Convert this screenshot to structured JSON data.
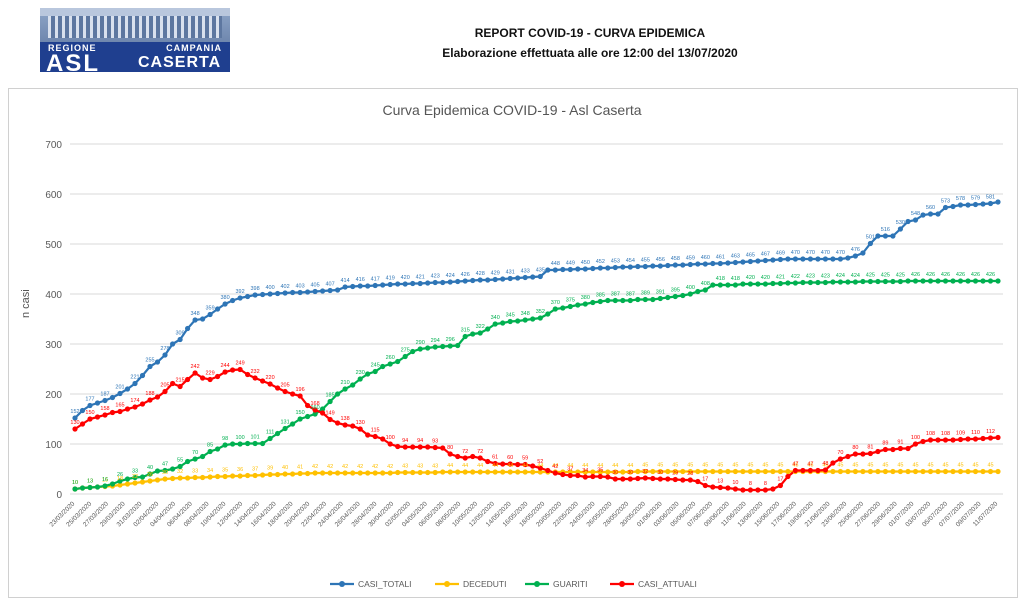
{
  "header": {
    "logo_region": "REGIONE",
    "logo_region_right": "CAMPANIA",
    "logo_asl": "ASL",
    "logo_city": "CASERTA",
    "report_title": "REPORT COVID-19 - CURVA EPIDEMICA",
    "report_subtitle": "Elaborazione effettuata alle ore 12:00 del 13/07/2020"
  },
  "chart_data": {
    "type": "line",
    "title": "Curva Epidemica COVID-19 - Asl Caserta",
    "xlabel": "",
    "ylabel": "n casi",
    "ylim": [
      0,
      700
    ],
    "yticks": [
      0,
      100,
      200,
      300,
      400,
      500,
      600,
      700
    ],
    "grid": "horizontal",
    "legend_position": "bottom",
    "x_tick_labels": [
      "23/03/2020",
      "25/03/2020",
      "27/03/2020",
      "29/03/2020",
      "31/03/2020",
      "02/04/2020",
      "04/04/2020",
      "06/04/2020",
      "08/04/2020",
      "10/04/2020",
      "12/04/2020",
      "14/04/2020",
      "16/04/2020",
      "18/04/2020",
      "20/04/2020",
      "22/04/2020",
      "24/04/2020",
      "26/04/2020",
      "28/04/2020",
      "30/04/2020",
      "02/05/2020",
      "04/05/2020",
      "06/05/2020",
      "08/05/2020",
      "10/05/2020",
      "12/05/2020",
      "14/05/2020",
      "16/05/2020",
      "18/05/2020",
      "20/05/2020",
      "22/05/2020",
      "24/05/2020",
      "26/05/2020",
      "28/05/2020",
      "30/05/2020",
      "01/06/2020",
      "03/06/2020",
      "05/06/2020",
      "07/06/2020",
      "09/06/2020",
      "11/06/2020",
      "13/06/2020",
      "15/06/2020",
      "17/06/2020",
      "19/06/2020",
      "21/06/2020",
      "23/06/2020",
      "25/06/2020",
      "27/06/2020",
      "29/06/2020",
      "01/07/2020",
      "03/07/2020",
      "05/07/2020",
      "07/07/2020",
      "09/07/2020",
      "11/07/2020"
    ],
    "series": [
      {
        "name": "CASI_TOTALI",
        "color": "#2e75b6",
        "values": [
          152,
          167,
          177,
          182,
          187,
          193,
          201,
          210,
          221,
          237,
          255,
          264,
          278,
          300,
          309,
          331,
          348,
          350,
          359,
          370,
          380,
          387,
          392,
          395,
          398,
          399,
          400,
          401,
          402,
          403,
          403,
          404,
          405,
          406,
          407,
          408,
          414,
          415,
          416,
          416,
          417,
          418,
          419,
          420,
          420,
          421,
          421,
          422,
          423,
          423,
          424,
          425,
          426,
          427,
          428,
          428,
          429,
          430,
          431,
          432,
          433,
          434,
          435,
          448,
          448,
          449,
          449,
          450,
          450,
          451,
          452,
          452,
          453,
          454,
          454,
          455,
          455,
          456,
          456,
          457,
          458,
          458,
          459,
          460,
          460,
          461,
          461,
          462,
          463,
          464,
          465,
          466,
          467,
          468,
          469,
          470,
          470,
          470,
          470,
          470,
          470,
          470,
          470,
          472,
          476,
          482,
          501,
          516,
          516,
          516,
          530,
          545,
          548,
          558,
          560,
          560,
          573,
          575,
          578,
          578,
          579,
          580,
          581,
          584
        ]
      },
      {
        "name": "DECEDUTI",
        "color": "#ffc000",
        "values": [
          10,
          12,
          13,
          14,
          15,
          16,
          18,
          20,
          22,
          24,
          26,
          28,
          30,
          31,
          32,
          32,
          33,
          33,
          34,
          35,
          35,
          36,
          36,
          37,
          37,
          38,
          39,
          39,
          40,
          40,
          41,
          41,
          42,
          42,
          42,
          42,
          42,
          42,
          42,
          42,
          42,
          42,
          42,
          43,
          43,
          43,
          43,
          43,
          43,
          44,
          44,
          44,
          44,
          44,
          44,
          44,
          44,
          44,
          44,
          44,
          44,
          44,
          44,
          44,
          44,
          44,
          44,
          44,
          44,
          44,
          44,
          44,
          44,
          44,
          44,
          45,
          45,
          45,
          45,
          45,
          45,
          45,
          45,
          45,
          45,
          45,
          45,
          45,
          45,
          45,
          45,
          45,
          45,
          45,
          45,
          45,
          45,
          45,
          45,
          45,
          45,
          45,
          45,
          45,
          45,
          45,
          45,
          45,
          45,
          45,
          45,
          45,
          45,
          45,
          45,
          45,
          45,
          45,
          45,
          45,
          45,
          45,
          45,
          45
        ]
      },
      {
        "name": "GUARITI",
        "color": "#00b050",
        "values": [
          10,
          12,
          13,
          14,
          16,
          20,
          26,
          30,
          33,
          34,
          40,
          46,
          47,
          50,
          55,
          65,
          70,
          75,
          85,
          90,
          98,
          100,
          100,
          101,
          101,
          101,
          111,
          121,
          131,
          140,
          150,
          155,
          160,
          170,
          185,
          200,
          210,
          218,
          230,
          240,
          245,
          255,
          260,
          265,
          275,
          285,
          290,
          292,
          294,
          295,
          296,
          297,
          315,
          320,
          322,
          330,
          340,
          342,
          345,
          346,
          348,
          350,
          352,
          360,
          370,
          372,
          375,
          378,
          380,
          383,
          385,
          387,
          387,
          387,
          387,
          389,
          389,
          389,
          391,
          393,
          395,
          397,
          400,
          405,
          408,
          418,
          418,
          418,
          418,
          420,
          420,
          420,
          420,
          421,
          421,
          422,
          422,
          423,
          423,
          423,
          423,
          424,
          424,
          424,
          424,
          425,
          425,
          425,
          425,
          425,
          425,
          426,
          426,
          426,
          426,
          426,
          426,
          426,
          426,
          426,
          426,
          426,
          426,
          426
        ]
      },
      {
        "name": "CASI_ATTUALI",
        "color": "#ff0000",
        "values": [
          130,
          140,
          150,
          154,
          158,
          163,
          165,
          170,
          174,
          180,
          188,
          194,
          205,
          221,
          215,
          229,
          242,
          232,
          229,
          235,
          244,
          248,
          249,
          239,
          232,
          226,
          220,
          212,
          205,
          200,
          196,
          177,
          168,
          162,
          149,
          142,
          138,
          136,
          130,
          118,
          115,
          110,
          100,
          95,
          94,
          94,
          94,
          94,
          93,
          92,
          80,
          75,
          72,
          75,
          72,
          65,
          61,
          60,
          60,
          59,
          59,
          56,
          52,
          47,
          42,
          39,
          37,
          37,
          34,
          35,
          35,
          34,
          30,
          30,
          30,
          31,
          32,
          31,
          30,
          30,
          29,
          28,
          28,
          25,
          17,
          14,
          13,
          12,
          10,
          8,
          8,
          8,
          8,
          10,
          17,
          35,
          47,
          47,
          47,
          47,
          48,
          62,
          70,
          75,
          80,
          80,
          81,
          85,
          89,
          89,
          91,
          91,
          100,
          105,
          108,
          108,
          108,
          108,
          109,
          110,
          110,
          111,
          112,
          113
        ]
      }
    ]
  }
}
